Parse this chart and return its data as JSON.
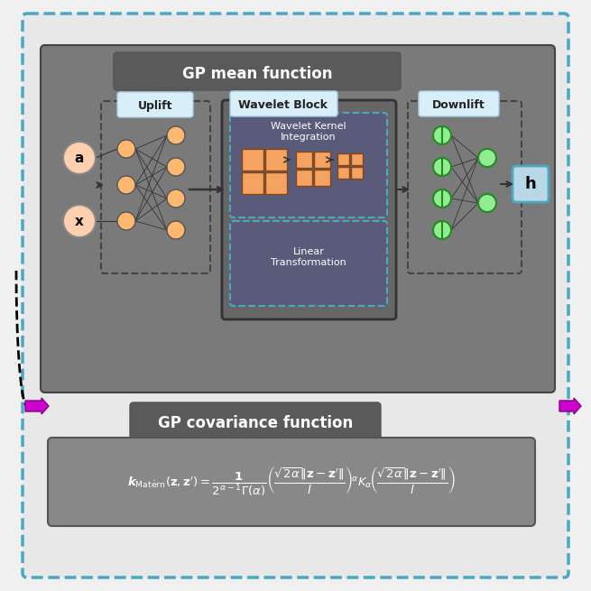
{
  "outer_bg": "#e8e8e8",
  "outer_border_color": "#4aa8c0",
  "inner_bg": "#888888",
  "inner_border_color": "#555555",
  "gp_mean_label_bg": "#666666",
  "gp_mean_label_text": "GP mean function",
  "gp_cov_label_bg": "#666666",
  "gp_cov_label_text": "GP covariance function",
  "uplift_label": "Uplift",
  "wavelet_label": "Wavelet Block",
  "downlift_label": "Downlift",
  "wki_label": "Wavelet Kernel\nIntegration",
  "lt_label": "Linear\nTransformation",
  "input_a": "a",
  "input_x": "x",
  "output_h": "h",
  "node_color_orange": "#FFD0A0",
  "node_color_green": "#90EE90",
  "node_color_white": "#FFFFFF",
  "node_color_pink": "#FFD0B0",
  "wavelet_tile_color": "#F4A460",
  "arrow_color": "#333333",
  "magenta_arrow": "#CC00CC",
  "formula": "k_{\\mathrm{Mat\\acute{e}rn}}(\\mathbf{z}, \\mathbf{z}') = \\dfrac{1}{2^{\\alpha-1}\\Gamma(\\alpha)}\\left(\\dfrac{\\sqrt{2\\alpha}\\|\\mathbf{z} - \\mathbf{z}'\\|}{l}\\right)^{\\!\\alpha} K_{\\alpha}\\!\\left(\\dfrac{\\sqrt{2\\alpha}\\|\\mathbf{z} - \\mathbf{z}'\\|}{l}\\right)",
  "formula_bg": "#999999",
  "label_bg_light": "#d0e8f0",
  "label_bg_white": "#f0f8ff"
}
